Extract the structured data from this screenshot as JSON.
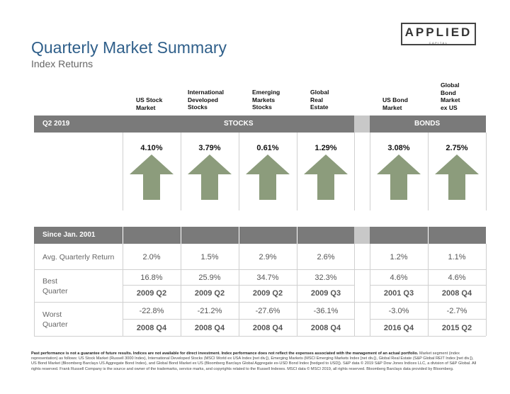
{
  "header": {
    "title": "Quarterly Market Summary",
    "subtitle": "Index Returns",
    "logo_main": "APPLIED",
    "logo_sub": "CAPITAL"
  },
  "columns": [
    {
      "key": "us_stock",
      "label": "US Stock\nMarket"
    },
    {
      "key": "intl_dev",
      "label": "International\nDeveloped\nStocks"
    },
    {
      "key": "em",
      "label": "Emerging\nMarkets\nStocks"
    },
    {
      "key": "global_re",
      "label": "Global\nReal\nEstate"
    },
    {
      "key": "us_bond",
      "label": "US Bond\nMarket"
    },
    {
      "key": "global_bond",
      "label": "Global\nBond\nMarket\nex US"
    }
  ],
  "quarter_bar": {
    "period": "Q2 2019",
    "stocks": "STOCKS",
    "bonds": "BONDS"
  },
  "quarter_returns": [
    "4.10%",
    "3.79%",
    "0.61%",
    "1.29%",
    "3.08%",
    "2.75%"
  ],
  "arrow_color": "#8c9c7c",
  "since_bar": {
    "label": "Since Jan. 2001"
  },
  "avg_quarterly": {
    "label": "Avg. Quarterly Return",
    "values": [
      "2.0%",
      "1.5%",
      "2.9%",
      "2.6%",
      "1.2%",
      "1.1%"
    ]
  },
  "best": {
    "label_line1": "Best",
    "label_line2": "Quarter",
    "values": [
      "16.8%",
      "25.9%",
      "34.7%",
      "32.3%",
      "4.6%",
      "4.6%"
    ],
    "dates": [
      "2009 Q2",
      "2009 Q2",
      "2009 Q2",
      "2009 Q3",
      "2001 Q3",
      "2008 Q4"
    ]
  },
  "worst": {
    "label_line1": "Worst",
    "label_line2": "Quarter",
    "values": [
      "-22.8%",
      "-21.2%",
      "-27.6%",
      "-36.1%",
      "-3.0%",
      "-2.7%"
    ],
    "dates": [
      "2008 Q4",
      "2008 Q4",
      "2008 Q4",
      "2008 Q4",
      "2016 Q4",
      "2015 Q2"
    ]
  },
  "footnote": {
    "bold": "Past performance is not a guarantee of future results. Indices are not available for direct investment. Index performance does not reflect the expenses associated with the management of an actual portfolio.",
    "text": "Market segment (index representation) as follows: US Stock Market (Russell 3000 Index), International Developed Stocks (MSCI World ex USA Index [net div.]), Emerging Markets (MSCI Emerging Markets Index [net div.]), Global Real Estate (S&P Global REIT Index [net div.]), US Bond Market (Bloomberg Barclays US Aggregate Bond Index), and Global Bond Market ex US (Bloomberg Barclays Global Aggregate ex-USD Bond Index [hedged to USD]). S&P data © 2019 S&P Dow Jones Indices LLC, a division of S&P Global. All rights reserved. Frank Russell Company is the source and owner of the trademarks, service marks, and copyrights related to the Russell Indexes. MSCI data © MSCI 2019, all rights reserved. Bloomberg Barclays data provided by Bloomberg."
  }
}
